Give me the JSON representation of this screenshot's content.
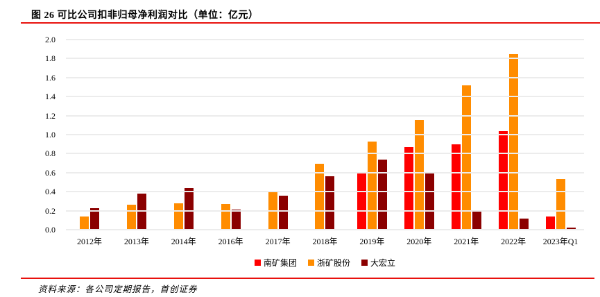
{
  "header": {
    "title": "图 26 可比公司扣非归母净利润对比（单位：亿元）"
  },
  "footer": {
    "source": "资料来源：各公司定期报告，首创证券"
  },
  "colors": {
    "accent_red": "#e8110d",
    "series_nankuang": "#ff0000",
    "series_zhekuang": "#ff8c00",
    "series_dahongli": "#8b0000",
    "gridline": "#ececec"
  },
  "chart_data": {
    "type": "bar",
    "title": "图 26 可比公司扣非归母净利润对比（单位：亿元）",
    "unit": "亿元",
    "categories": [
      "2012年",
      "2013年",
      "2014年",
      "2016年",
      "2017年",
      "2018年",
      "2019年",
      "2020年",
      "2021年",
      "2022年",
      "2023年Q1"
    ],
    "series": [
      {
        "name": "南矿集团",
        "color": "#ff0000",
        "values": [
          null,
          null,
          null,
          null,
          null,
          null,
          0.6,
          0.87,
          0.9,
          1.04,
          0.14
        ]
      },
      {
        "name": "浙矿股份",
        "color": "#ff8c00",
        "values": [
          0.14,
          0.26,
          0.28,
          0.27,
          0.41,
          0.69,
          0.93,
          1.15,
          1.52,
          1.85,
          0.53
        ]
      },
      {
        "name": "大宏立",
        "color": "#8b0000",
        "values": [
          0.23,
          0.38,
          0.44,
          0.21,
          0.36,
          0.56,
          0.74,
          0.59,
          0.19,
          0.12,
          0.02
        ]
      }
    ],
    "xlabel": "",
    "ylabel": "",
    "ylim": [
      0,
      2.0
    ],
    "ytick_step": 0.2,
    "ytick_labels": [
      "0.0",
      "0.2",
      "0.4",
      "0.6",
      "0.8",
      "1.0",
      "1.2",
      "1.4",
      "1.6",
      "1.8",
      "2.0"
    ],
    "grid": true,
    "legend_position": "bottom"
  }
}
